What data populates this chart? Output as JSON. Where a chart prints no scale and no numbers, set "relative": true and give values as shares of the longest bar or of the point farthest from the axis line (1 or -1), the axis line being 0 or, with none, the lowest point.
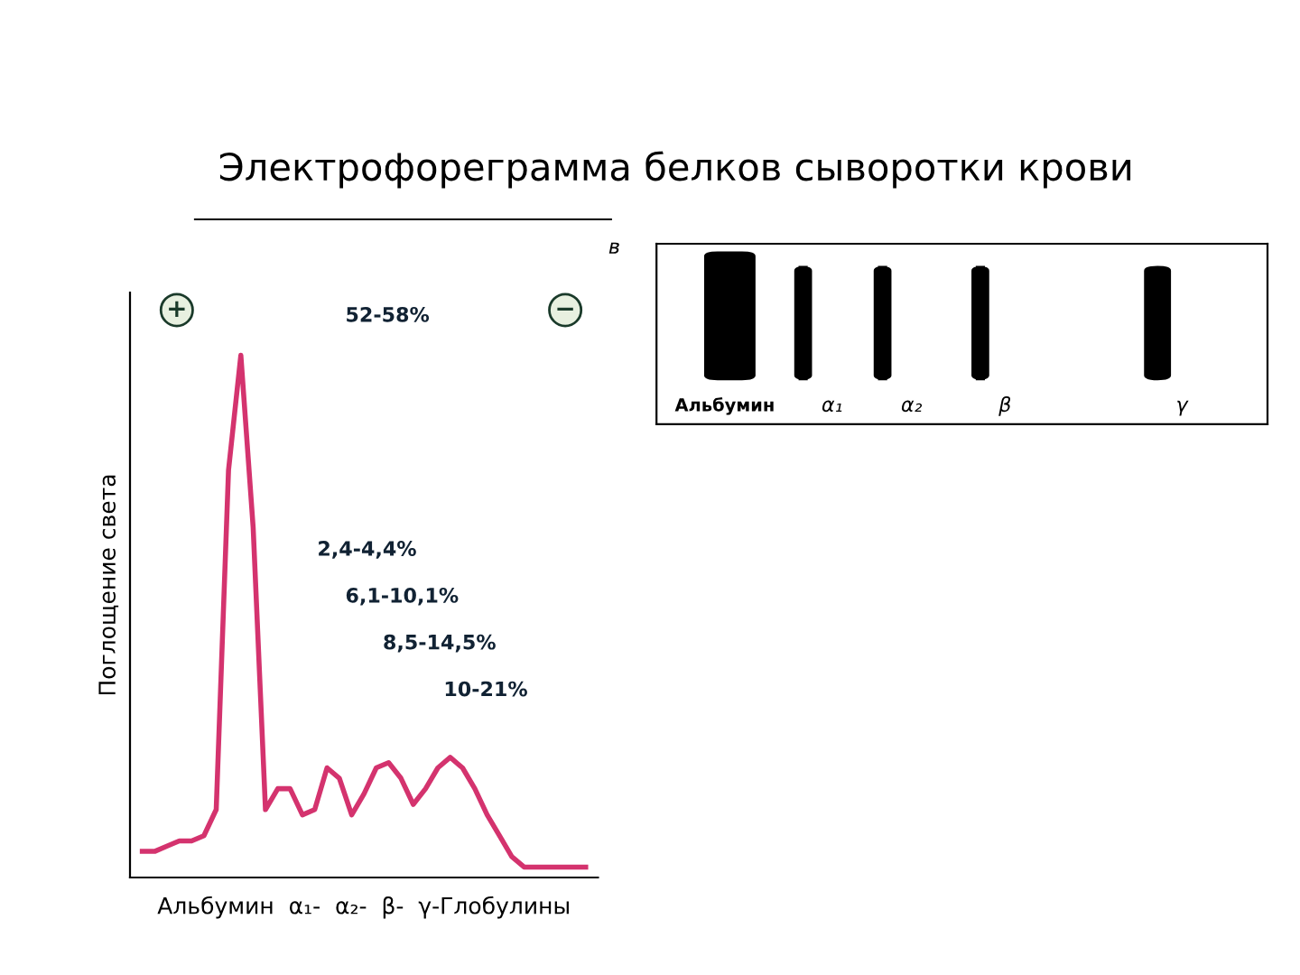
{
  "chart_data": {
    "type": "line",
    "relative": true,
    "title": "Электрофореграмма белков сыворотки крови",
    "xlabel": "Альбумин  α₁-  α₂-  β-  γ-Глобулины",
    "ylabel": "Поглощение света",
    "categories": [
      null,
      null,
      null,
      null,
      null,
      null,
      null,
      null,
      null,
      null,
      null,
      null,
      null,
      null,
      null,
      null,
      null,
      null,
      null,
      null,
      null,
      null,
      null,
      null,
      null,
      null,
      null,
      null,
      null,
      null,
      null,
      null,
      null,
      null,
      null,
      null,
      null
    ],
    "series": [
      {
        "color": "#d4336e",
        "values": [
          0.05,
          0.05,
          0.06,
          0.07,
          0.07,
          0.08,
          0.13,
          0.78,
          1.0,
          0.67,
          0.13,
          0.17,
          0.17,
          0.12,
          0.13,
          0.21,
          0.19,
          0.12,
          0.16,
          0.21,
          0.22,
          0.19,
          0.14,
          0.17,
          0.21,
          0.23,
          0.21,
          0.17,
          0.12,
          0.08,
          0.04,
          0.02,
          0.02,
          0.02,
          0.02,
          0.02,
          0.02
        ]
      }
    ],
    "annotations": [
      "52-58%",
      "2,4-4,4%",
      "6,1-10,1%",
      "8,5-14,5%",
      "10-21%",
      "+",
      "−",
      "в",
      "Альбумин",
      "α₁",
      "α₂",
      "β",
      "γ"
    ],
    "grid": false,
    "legend": false,
    "marker": "none",
    "line_style": "solid"
  }
}
